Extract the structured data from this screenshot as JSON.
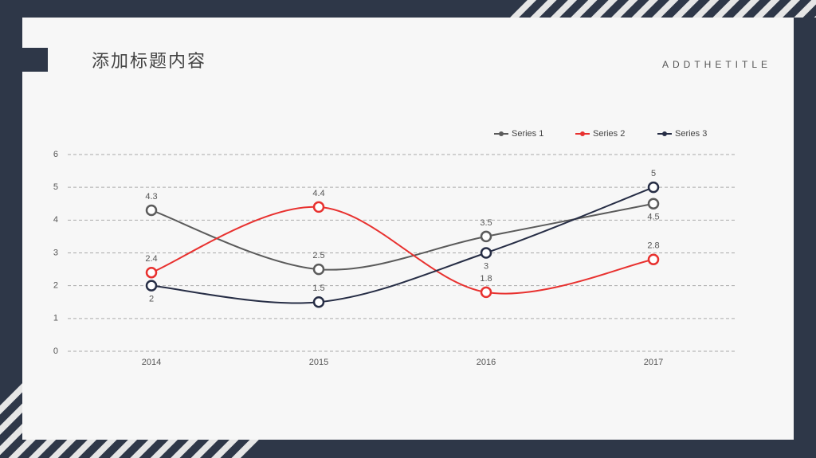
{
  "chart_data": {
    "type": "line",
    "title": "添加标题内容",
    "subtitle": "ADDTHETITLE",
    "categories": [
      "2014",
      "2015",
      "2016",
      "2017"
    ],
    "series": [
      {
        "name": "Series 1",
        "color": "#5b5b5b",
        "values": [
          4.3,
          2.5,
          3.5,
          4.5
        ]
      },
      {
        "name": "Series 2",
        "color": "#e8312f",
        "values": [
          2.4,
          4.4,
          1.8,
          2.8
        ]
      },
      {
        "name": "Series 3",
        "color": "#262d45",
        "values": [
          2,
          1.5,
          3,
          5
        ]
      }
    ],
    "ylim": [
      0,
      6
    ],
    "yticks": [
      0,
      1,
      2,
      3,
      4,
      5,
      6
    ],
    "grid": true,
    "legend": "top",
    "smooth": true
  }
}
